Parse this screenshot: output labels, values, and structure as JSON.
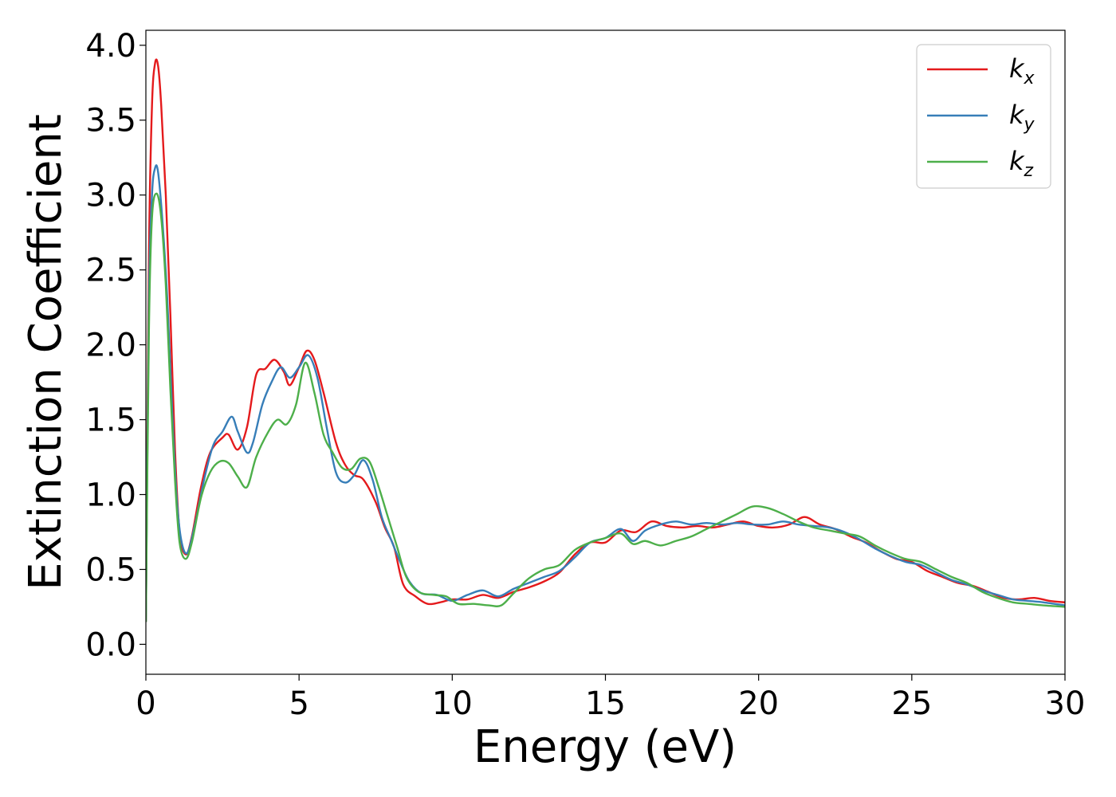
{
  "chart_data": {
    "type": "line",
    "title": "",
    "xlabel": "Energy (eV)",
    "ylabel": "Extinction Coefficient",
    "xlim": [
      0,
      30
    ],
    "ylim": [
      -0.2,
      4.1
    ],
    "xticks": [
      0,
      5,
      10,
      15,
      20,
      25,
      30
    ],
    "xtick_labels": [
      "0",
      "5",
      "10",
      "15",
      "20",
      "25",
      "30"
    ],
    "yticks": [
      0.0,
      0.5,
      1.0,
      1.5,
      2.0,
      2.5,
      3.0,
      3.5,
      4.0
    ],
    "ytick_labels": [
      "0.0",
      "0.5",
      "1.0",
      "1.5",
      "2.0",
      "2.5",
      "3.0",
      "3.5",
      "4.0"
    ],
    "grid": false,
    "legend_position": "top-right",
    "series": [
      {
        "name": "kx",
        "label_main": "k",
        "label_sub": "x",
        "color": "#e41a1c",
        "points": [
          [
            0,
            0.15
          ],
          [
            0.1,
            2.6
          ],
          [
            0.2,
            3.6
          ],
          [
            0.3,
            3.88
          ],
          [
            0.4,
            3.86
          ],
          [
            0.5,
            3.6
          ],
          [
            0.65,
            3.0
          ],
          [
            0.8,
            2.2
          ],
          [
            0.95,
            1.3
          ],
          [
            1.1,
            0.75
          ],
          [
            1.3,
            0.6
          ],
          [
            1.5,
            0.72
          ],
          [
            1.8,
            1.05
          ],
          [
            2.1,
            1.28
          ],
          [
            2.5,
            1.38
          ],
          [
            2.7,
            1.4
          ],
          [
            3.0,
            1.3
          ],
          [
            3.3,
            1.45
          ],
          [
            3.6,
            1.8
          ],
          [
            3.9,
            1.84
          ],
          [
            4.2,
            1.9
          ],
          [
            4.5,
            1.82
          ],
          [
            4.7,
            1.73
          ],
          [
            5.0,
            1.85
          ],
          [
            5.25,
            1.96
          ],
          [
            5.5,
            1.9
          ],
          [
            5.8,
            1.68
          ],
          [
            6.2,
            1.35
          ],
          [
            6.5,
            1.2
          ],
          [
            6.8,
            1.13
          ],
          [
            7.1,
            1.1
          ],
          [
            7.5,
            0.95
          ],
          [
            7.8,
            0.78
          ],
          [
            8.1,
            0.65
          ],
          [
            8.4,
            0.4
          ],
          [
            8.8,
            0.32
          ],
          [
            9.2,
            0.27
          ],
          [
            9.6,
            0.28
          ],
          [
            10.0,
            0.3
          ],
          [
            10.5,
            0.3
          ],
          [
            11.0,
            0.33
          ],
          [
            11.5,
            0.31
          ],
          [
            12.0,
            0.35
          ],
          [
            12.5,
            0.38
          ],
          [
            13.0,
            0.42
          ],
          [
            13.5,
            0.48
          ],
          [
            14.0,
            0.6
          ],
          [
            14.5,
            0.68
          ],
          [
            15.0,
            0.68
          ],
          [
            15.5,
            0.76
          ],
          [
            16.0,
            0.75
          ],
          [
            16.5,
            0.82
          ],
          [
            17.0,
            0.79
          ],
          [
            17.5,
            0.78
          ],
          [
            18.0,
            0.79
          ],
          [
            18.5,
            0.78
          ],
          [
            19.0,
            0.8
          ],
          [
            19.5,
            0.82
          ],
          [
            20.0,
            0.79
          ],
          [
            20.5,
            0.78
          ],
          [
            21.0,
            0.8
          ],
          [
            21.5,
            0.85
          ],
          [
            22.0,
            0.8
          ],
          [
            22.5,
            0.77
          ],
          [
            23.0,
            0.72
          ],
          [
            23.5,
            0.68
          ],
          [
            24.0,
            0.62
          ],
          [
            24.5,
            0.57
          ],
          [
            25.0,
            0.55
          ],
          [
            25.5,
            0.49
          ],
          [
            26.0,
            0.45
          ],
          [
            26.5,
            0.41
          ],
          [
            27.0,
            0.39
          ],
          [
            27.5,
            0.35
          ],
          [
            28.0,
            0.31
          ],
          [
            28.5,
            0.3
          ],
          [
            29.0,
            0.31
          ],
          [
            29.5,
            0.29
          ],
          [
            30.0,
            0.28
          ]
        ]
      },
      {
        "name": "ky",
        "label_main": "k",
        "label_sub": "y",
        "color": "#377eb8",
        "points": [
          [
            0,
            0.15
          ],
          [
            0.1,
            2.3
          ],
          [
            0.2,
            3.0
          ],
          [
            0.3,
            3.18
          ],
          [
            0.4,
            3.15
          ],
          [
            0.55,
            2.8
          ],
          [
            0.7,
            2.3
          ],
          [
            0.85,
            1.6
          ],
          [
            1.0,
            1.0
          ],
          [
            1.15,
            0.7
          ],
          [
            1.35,
            0.61
          ],
          [
            1.6,
            0.8
          ],
          [
            1.9,
            1.1
          ],
          [
            2.2,
            1.33
          ],
          [
            2.5,
            1.42
          ],
          [
            2.8,
            1.52
          ],
          [
            3.0,
            1.42
          ],
          [
            3.3,
            1.28
          ],
          [
            3.5,
            1.35
          ],
          [
            3.8,
            1.6
          ],
          [
            4.1,
            1.75
          ],
          [
            4.4,
            1.85
          ],
          [
            4.7,
            1.78
          ],
          [
            5.0,
            1.85
          ],
          [
            5.3,
            1.93
          ],
          [
            5.6,
            1.78
          ],
          [
            5.9,
            1.45
          ],
          [
            6.2,
            1.15
          ],
          [
            6.5,
            1.08
          ],
          [
            6.8,
            1.13
          ],
          [
            7.1,
            1.23
          ],
          [
            7.4,
            1.1
          ],
          [
            7.7,
            0.85
          ],
          [
            8.0,
            0.7
          ],
          [
            8.3,
            0.55
          ],
          [
            8.6,
            0.42
          ],
          [
            9.0,
            0.34
          ],
          [
            9.5,
            0.33
          ],
          [
            10.0,
            0.29
          ],
          [
            10.5,
            0.33
          ],
          [
            11.0,
            0.36
          ],
          [
            11.5,
            0.32
          ],
          [
            12.0,
            0.37
          ],
          [
            12.5,
            0.41
          ],
          [
            13.0,
            0.45
          ],
          [
            13.5,
            0.49
          ],
          [
            14.0,
            0.58
          ],
          [
            14.5,
            0.68
          ],
          [
            15.0,
            0.71
          ],
          [
            15.5,
            0.77
          ],
          [
            15.9,
            0.69
          ],
          [
            16.3,
            0.76
          ],
          [
            16.8,
            0.8
          ],
          [
            17.3,
            0.82
          ],
          [
            17.8,
            0.8
          ],
          [
            18.3,
            0.81
          ],
          [
            18.8,
            0.8
          ],
          [
            19.3,
            0.81
          ],
          [
            19.8,
            0.8
          ],
          [
            20.3,
            0.8
          ],
          [
            20.8,
            0.82
          ],
          [
            21.3,
            0.8
          ],
          [
            21.8,
            0.79
          ],
          [
            22.3,
            0.78
          ],
          [
            22.8,
            0.75
          ],
          [
            23.3,
            0.7
          ],
          [
            23.8,
            0.64
          ],
          [
            24.3,
            0.59
          ],
          [
            24.8,
            0.55
          ],
          [
            25.3,
            0.53
          ],
          [
            25.8,
            0.48
          ],
          [
            26.3,
            0.43
          ],
          [
            26.8,
            0.4
          ],
          [
            27.3,
            0.36
          ],
          [
            27.8,
            0.33
          ],
          [
            28.3,
            0.3
          ],
          [
            28.8,
            0.29
          ],
          [
            29.3,
            0.28
          ],
          [
            30.0,
            0.26
          ]
        ]
      },
      {
        "name": "kz",
        "label_main": "k",
        "label_sub": "z",
        "color": "#4daf4a",
        "points": [
          [
            0,
            0.15
          ],
          [
            0.1,
            2.1
          ],
          [
            0.2,
            2.85
          ],
          [
            0.35,
            3.01
          ],
          [
            0.5,
            2.85
          ],
          [
            0.65,
            2.4
          ],
          [
            0.8,
            1.7
          ],
          [
            0.95,
            1.1
          ],
          [
            1.1,
            0.68
          ],
          [
            1.3,
            0.57
          ],
          [
            1.5,
            0.68
          ],
          [
            1.8,
            0.98
          ],
          [
            2.1,
            1.15
          ],
          [
            2.4,
            1.22
          ],
          [
            2.7,
            1.21
          ],
          [
            3.0,
            1.12
          ],
          [
            3.3,
            1.05
          ],
          [
            3.6,
            1.25
          ],
          [
            4.0,
            1.42
          ],
          [
            4.3,
            1.5
          ],
          [
            4.6,
            1.47
          ],
          [
            4.9,
            1.6
          ],
          [
            5.2,
            1.88
          ],
          [
            5.5,
            1.68
          ],
          [
            5.8,
            1.4
          ],
          [
            6.1,
            1.28
          ],
          [
            6.4,
            1.18
          ],
          [
            6.7,
            1.17
          ],
          [
            7.0,
            1.24
          ],
          [
            7.3,
            1.22
          ],
          [
            7.6,
            1.05
          ],
          [
            7.9,
            0.85
          ],
          [
            8.2,
            0.65
          ],
          [
            8.5,
            0.45
          ],
          [
            8.9,
            0.35
          ],
          [
            9.4,
            0.33
          ],
          [
            9.8,
            0.32
          ],
          [
            10.2,
            0.27
          ],
          [
            10.7,
            0.27
          ],
          [
            11.2,
            0.26
          ],
          [
            11.6,
            0.26
          ],
          [
            12.0,
            0.34
          ],
          [
            12.5,
            0.44
          ],
          [
            13.0,
            0.5
          ],
          [
            13.5,
            0.53
          ],
          [
            14.0,
            0.63
          ],
          [
            14.5,
            0.68
          ],
          [
            15.0,
            0.71
          ],
          [
            15.5,
            0.74
          ],
          [
            15.9,
            0.67
          ],
          [
            16.3,
            0.69
          ],
          [
            16.8,
            0.66
          ],
          [
            17.3,
            0.69
          ],
          [
            17.8,
            0.72
          ],
          [
            18.3,
            0.77
          ],
          [
            18.8,
            0.82
          ],
          [
            19.3,
            0.87
          ],
          [
            19.8,
            0.92
          ],
          [
            20.3,
            0.91
          ],
          [
            20.8,
            0.87
          ],
          [
            21.3,
            0.82
          ],
          [
            21.8,
            0.78
          ],
          [
            22.3,
            0.76
          ],
          [
            22.8,
            0.74
          ],
          [
            23.3,
            0.72
          ],
          [
            23.8,
            0.66
          ],
          [
            24.3,
            0.61
          ],
          [
            24.8,
            0.57
          ],
          [
            25.3,
            0.55
          ],
          [
            25.8,
            0.5
          ],
          [
            26.3,
            0.45
          ],
          [
            26.8,
            0.41
          ],
          [
            27.3,
            0.35
          ],
          [
            27.8,
            0.31
          ],
          [
            28.3,
            0.28
          ],
          [
            28.8,
            0.27
          ],
          [
            29.3,
            0.26
          ],
          [
            30.0,
            0.25
          ]
        ]
      }
    ]
  }
}
